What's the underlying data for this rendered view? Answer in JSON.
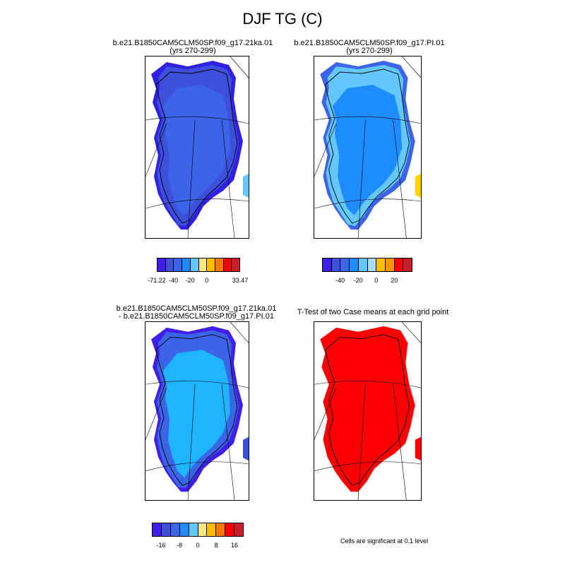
{
  "title": "DJF TG (C)",
  "panels": [
    {
      "title_line1": "b.e21.B1850CAM5CLM50SP.f09_g17.21ka.01",
      "title_line2": "(yrs 270-299)",
      "colorbar": {
        "colors": [
          "#4020e8",
          "#3c50dc",
          "#3c64e6",
          "#1e8cff",
          "#64c8ff",
          "#ffe680",
          "#ffbe00",
          "#ff7800",
          "#ff0000",
          "#c81e28"
        ],
        "labels": [
          {
            "text": "-71.22",
            "boundary": 0
          },
          {
            "text": "-40",
            "boundary": 2
          },
          {
            "text": "-20",
            "boundary": 4
          },
          {
            "text": "0",
            "boundary": 6
          },
          {
            "text": "33.47",
            "boundary": 10
          }
        ]
      },
      "fill_colors": {
        "coast": "#3c50dc",
        "interior": "#3c64e6",
        "east": "#64c8ff",
        "edge": "#3020e0"
      }
    },
    {
      "title_line1": "b.e21.B1850CAM5CLM50SP.f09_g17.PI.01",
      "title_line2": "(yrs 270-299)",
      "colorbar": {
        "colors": [
          "#4020e8",
          "#3c50dc",
          "#3c64e6",
          "#1e8cff",
          "#64c8ff",
          "#aadcff",
          "#ffbe00",
          "#ff9600",
          "#ff0000",
          "#c81e28"
        ],
        "labels": [
          {
            "text": "-40",
            "boundary": 2
          },
          {
            "text": "-20",
            "boundary": 4
          },
          {
            "text": "0",
            "boundary": 6
          },
          {
            "text": "20",
            "boundary": 8
          }
        ]
      },
      "fill_colors": {
        "coast": "#64c8ff",
        "interior": "#1e8cff",
        "east": "#ffd200",
        "edge": "#3c64e6"
      }
    },
    {
      "title_line1": "b.e21.B1850CAM5CLM50SP.f09_g17.21ka.01",
      "title_line2": "- b.e21.B1850CAM5CLM50SP.f09_g17.PI.01",
      "colorbar": {
        "colors": [
          "#4020e8",
          "#3c50dc",
          "#3c64e6",
          "#1e8cff",
          "#64c8ff",
          "#ffe680",
          "#ffbe00",
          "#ff7800",
          "#ff0000",
          "#c81e28"
        ],
        "labels": [
          {
            "text": "-16",
            "boundary": 1
          },
          {
            "text": "-8",
            "boundary": 3
          },
          {
            "text": "0",
            "boundary": 5
          },
          {
            "text": "8",
            "boundary": 7
          },
          {
            "text": "16",
            "boundary": 9
          }
        ]
      },
      "fill_colors": {
        "coast": "#3c64e6",
        "interior": "#1eb4ff",
        "east": "#3c50dc",
        "edge": "#4020e8"
      }
    },
    {
      "title_line1": "T-Test of two Case means at each grid point",
      "title_line2": "",
      "note": "Cells are significant at 0.1 level",
      "fill_colors": {
        "coast": "#ff0000",
        "interior": "#ff0000",
        "east": "#ff0000",
        "edge": "#ff0000"
      }
    }
  ]
}
